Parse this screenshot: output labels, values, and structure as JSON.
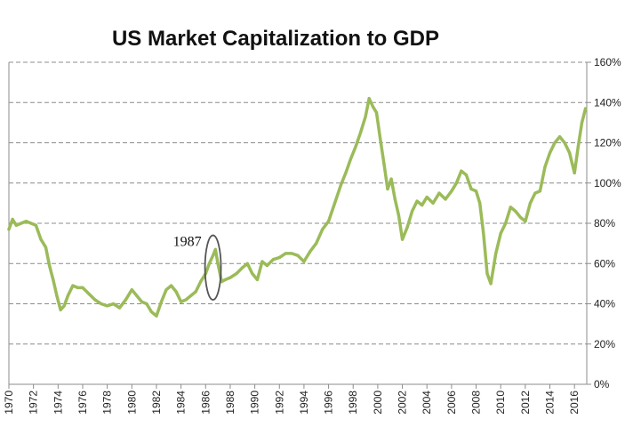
{
  "chart_data": {
    "type": "line",
    "title": "US Market Capitalization to GDP",
    "xlabel": "",
    "ylabel": "",
    "xlim": [
      1970,
      2017
    ],
    "ylim": [
      0,
      160
    ],
    "y_axis_position": "right",
    "y_ticks": [
      "0%",
      "20%",
      "40%",
      "60%",
      "80%",
      "100%",
      "120%",
      "140%",
      "160%"
    ],
    "x_ticks": [
      "1970",
      "1972",
      "1974",
      "1976",
      "1978",
      "1980",
      "1982",
      "1984",
      "1986",
      "1988",
      "1990",
      "1992",
      "1994",
      "1996",
      "1998",
      "2000",
      "2002",
      "2004",
      "2006",
      "2008",
      "2010",
      "2012",
      "2014",
      "2016"
    ],
    "grid": "horizontal dashed",
    "line_color": "#9bbb59",
    "annotation": {
      "label": "1987",
      "x_center": 1986.6,
      "y_center": 58,
      "x_radius": 0.65,
      "y_radius": 16
    },
    "series": [
      {
        "x": [
          1970,
          1970.3,
          1970.6,
          1971,
          1971.4,
          1971.8,
          1972.2,
          1972.6,
          1973,
          1973.3,
          1973.6,
          1973.9,
          1974.2,
          1974.5,
          1974.8,
          1975.2,
          1975.6,
          1976,
          1976.5,
          1977,
          1977.5,
          1978,
          1978.5,
          1979,
          1979.5,
          1980,
          1980.4,
          1980.8,
          1981.2,
          1981.6,
          1982,
          1982.4,
          1982.8,
          1983.2,
          1983.6,
          1984,
          1984.4,
          1984.8,
          1985.2,
          1985.6,
          1986,
          1986.3,
          1986.6,
          1986.8,
          1987,
          1987.3,
          1987.6,
          1988,
          1988.5,
          1989,
          1989.4,
          1989.8,
          1990.2,
          1990.6,
          1991,
          1991.5,
          1992,
          1992.5,
          1993,
          1993.5,
          1994,
          1994.5,
          1995,
          1995.5,
          1996,
          1996.5,
          1997,
          1997.4,
          1997.8,
          1998.2,
          1998.6,
          1999,
          1999.3,
          1999.6,
          1999.9,
          2000.2,
          2000.5,
          2000.8,
          2001.1,
          2001.4,
          2001.7,
          2002,
          2002.4,
          2002.8,
          2003.2,
          2003.6,
          2004,
          2004.5,
          2005,
          2005.5,
          2006,
          2006.4,
          2006.8,
          2007.2,
          2007.6,
          2008,
          2008.3,
          2008.6,
          2008.9,
          2009.2,
          2009.6,
          2010,
          2010.4,
          2010.8,
          2011.2,
          2011.6,
          2012,
          2012.4,
          2012.8,
          2013.2,
          2013.6,
          2014,
          2014.4,
          2014.8,
          2015.2,
          2015.6,
          2016,
          2016.3,
          2016.6,
          2016.9
        ],
        "values": [
          77,
          82,
          79,
          80,
          81,
          80,
          79,
          72,
          68,
          59,
          52,
          44,
          37,
          39,
          44,
          49,
          48,
          48,
          45,
          42,
          40,
          39,
          40,
          38,
          42,
          47,
          44,
          41,
          40,
          36,
          34,
          41,
          47,
          49,
          46,
          41,
          42,
          44,
          46,
          51,
          55,
          60,
          64,
          67,
          60,
          51,
          52,
          53,
          55,
          58,
          60,
          55,
          52,
          61,
          59,
          62,
          63,
          65,
          65,
          64,
          61,
          66,
          70,
          77,
          81,
          90,
          99,
          105,
          112,
          118,
          125,
          133,
          142,
          138,
          135,
          122,
          110,
          97,
          102,
          92,
          84,
          72,
          78,
          86,
          91,
          89,
          93,
          90,
          95,
          92,
          96,
          100,
          106,
          104,
          97,
          96,
          90,
          75,
          55,
          50,
          65,
          75,
          80,
          88,
          86,
          83,
          81,
          90,
          95,
          96,
          108,
          115,
          120,
          123,
          120,
          115,
          105,
          118,
          130,
          137
        ]
      }
    ]
  }
}
